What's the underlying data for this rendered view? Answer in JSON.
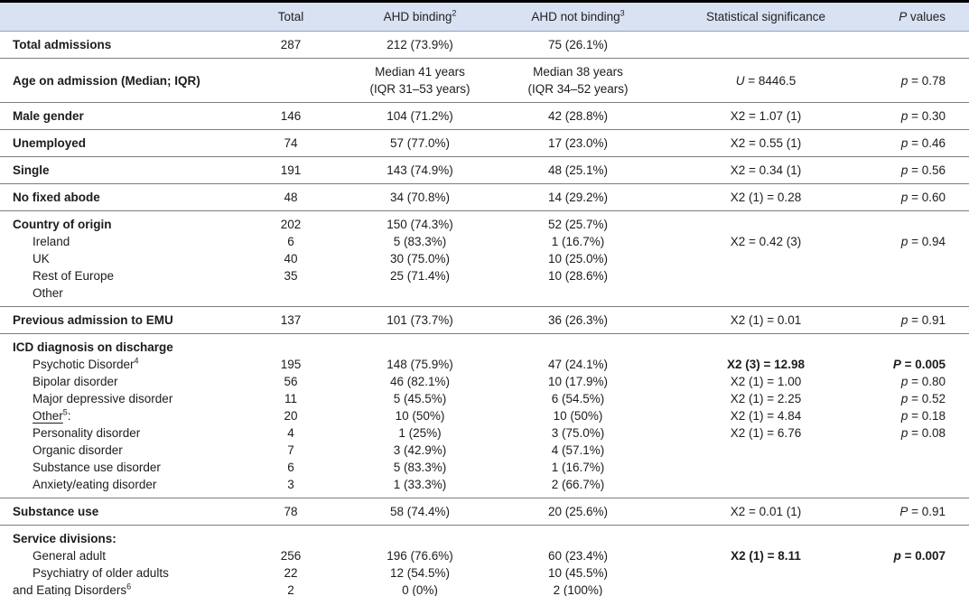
{
  "header": {
    "total": "Total",
    "ahd_binding": "AHD binding",
    "ahd_binding_sup": "2",
    "ahd_not_binding": "AHD not binding",
    "ahd_not_binding_sup": "3",
    "statistical_significance": "Statistical significance",
    "p_italic": "P",
    "p_rest": " values"
  },
  "sections": [
    {
      "rows": [
        {
          "label": "Total admissions",
          "bold": true,
          "total": "287",
          "binding": "212 (73.9%)",
          "notBinding": "75 (26.1%)",
          "stat": "",
          "p": ""
        }
      ]
    },
    {
      "rows": [
        {
          "label": "Age on admission (Median; IQR)",
          "bold": true,
          "total": "",
          "binding": [
            "Median 41 years",
            "(IQR 31–53 years)"
          ],
          "notBinding": [
            "Median 38 years",
            "(IQR 34–52 years)"
          ],
          "stat": "U = 8446.5",
          "statItalicFirst": true,
          "p": "p = 0.78"
        }
      ]
    },
    {
      "rows": [
        {
          "label": "Male gender",
          "bold": true,
          "total": "146",
          "binding": "104 (71.2%)",
          "notBinding": "42 (28.8%)",
          "stat": "X2 = 1.07 (1)",
          "p": "p = 0.30"
        }
      ]
    },
    {
      "rows": [
        {
          "label": "Unemployed",
          "bold": true,
          "total": "74",
          "binding": "57 (77.0%)",
          "notBinding": "17 (23.0%)",
          "stat": "X2 = 0.55 (1)",
          "p": "p = 0.46"
        }
      ]
    },
    {
      "rows": [
        {
          "label": "Single",
          "bold": true,
          "total": "191",
          "binding": "143 (74.9%)",
          "notBinding": "48 (25.1%)",
          "stat": "X2 = 0.34 (1)",
          "p": "p = 0.56"
        }
      ]
    },
    {
      "rows": [
        {
          "label": "No fixed abode",
          "bold": true,
          "total": "48",
          "binding": "34 (70.8%)",
          "notBinding": "14 (29.2%)",
          "stat": "X2 (1) = 0.28",
          "p": "p = 0.60"
        }
      ]
    },
    {
      "rows": [
        {
          "label": "Country of origin",
          "bold": true,
          "total": "202",
          "binding": "150 (74.3%)",
          "notBinding": "52 (25.7%)",
          "stat": "",
          "p": ""
        },
        {
          "label": "Ireland",
          "indent": 1,
          "total": "6",
          "binding": "5 (83.3%)",
          "notBinding": "1 (16.7%)",
          "stat": "X2 = 0.42 (3)",
          "p": "p = 0.94"
        },
        {
          "label": "UK",
          "indent": 1,
          "total": "40",
          "binding": "30 (75.0%)",
          "notBinding": "10 (25.0%)",
          "stat": "",
          "p": ""
        },
        {
          "label": "Rest of Europe",
          "indent": 1,
          "total": "35",
          "binding": "25 (71.4%)",
          "notBinding": "10 (28.6%)",
          "stat": "",
          "p": ""
        },
        {
          "label": "Other",
          "indent": 1,
          "total": "",
          "binding": "",
          "notBinding": "",
          "stat": "",
          "p": ""
        }
      ]
    },
    {
      "rows": [
        {
          "label": "Previous admission to EMU",
          "bold": true,
          "total": "137",
          "binding": "101 (73.7%)",
          "notBinding": "36 (26.3%)",
          "stat": "X2 (1) = 0.01",
          "p": "p = 0.91"
        }
      ]
    },
    {
      "rows": [
        {
          "label": "ICD diagnosis on discharge",
          "bold": true,
          "total": "",
          "binding": "",
          "notBinding": "",
          "stat": "",
          "p": ""
        },
        {
          "label": "Psychotic Disorder",
          "sup": "4",
          "indent": 1,
          "total": "195",
          "binding": "148 (75.9%)",
          "notBinding": "47 (24.1%)",
          "stat": "X2 (3) = 12.98",
          "statBold": true,
          "p": "P = 0.005",
          "pBold": true
        },
        {
          "label": "Bipolar disorder",
          "indent": 1,
          "total": "56",
          "binding": "46 (82.1%)",
          "notBinding": "10 (17.9%)",
          "stat": "X2 (1) = 1.00",
          "p": "p = 0.80"
        },
        {
          "label": "Major depressive disorder",
          "indent": 1,
          "total": "11",
          "binding": "5 (45.5%)",
          "notBinding": "6 (54.5%)",
          "stat": "X2 (1) = 2.25",
          "p": "p = 0.52"
        },
        {
          "label": "Other",
          "sup": "5",
          "suffix": ":",
          "underline": true,
          "indent": 1,
          "total": "20",
          "binding": "10 (50%)",
          "notBinding": "10 (50%)",
          "stat": "X2 (1) = 4.84",
          "p": "p = 0.18"
        },
        {
          "label": "Personality disorder",
          "indent": 1,
          "total": "4",
          "binding": "1 (25%)",
          "notBinding": "3 (75.0%)",
          "stat": "X2 (1) = 6.76",
          "p": "p = 0.08"
        },
        {
          "label": "Organic disorder",
          "indent": 1,
          "total": "7",
          "binding": "3 (42.9%)",
          "notBinding": "4 (57.1%)",
          "stat": "",
          "p": ""
        },
        {
          "label": "Substance use disorder",
          "indent": 1,
          "total": "6",
          "binding": "5 (83.3%)",
          "notBinding": "1 (16.7%)",
          "stat": "",
          "p": ""
        },
        {
          "label": "Anxiety/eating disorder",
          "indent": 1,
          "total": "3",
          "binding": "1 (33.3%)",
          "notBinding": "2 (66.7%)",
          "stat": "",
          "p": ""
        }
      ]
    },
    {
      "rows": [
        {
          "label": "Substance use",
          "bold": true,
          "total": "78",
          "binding": "58 (74.4%)",
          "notBinding": "20 (25.6%)",
          "stat": "X2 = 0.01 (1)",
          "p": "P = 0.91"
        }
      ]
    },
    {
      "rows": [
        {
          "label": "Service divisions:",
          "bold": true,
          "total": "",
          "binding": "",
          "notBinding": "",
          "stat": "",
          "p": ""
        },
        {
          "label": "General adult",
          "indent": 1,
          "total": "256",
          "binding": "196 (76.6%)",
          "notBinding": "60 (23.4%)",
          "stat": "X2 (1) = 8.11",
          "statBold": true,
          "p": "p = 0.007",
          "pBold": true
        },
        {
          "label": "Psychiatry of older adults",
          "indent": 1,
          "total": "22",
          "binding": "12 (54.5%)",
          "notBinding": "10 (45.5%)",
          "stat": "",
          "p": ""
        },
        {
          "label": "and Eating Disorders",
          "sup": "6",
          "total": "2",
          "binding": "0 (0%)",
          "notBinding": "2 (100%)",
          "stat": "",
          "p": ""
        }
      ]
    }
  ]
}
